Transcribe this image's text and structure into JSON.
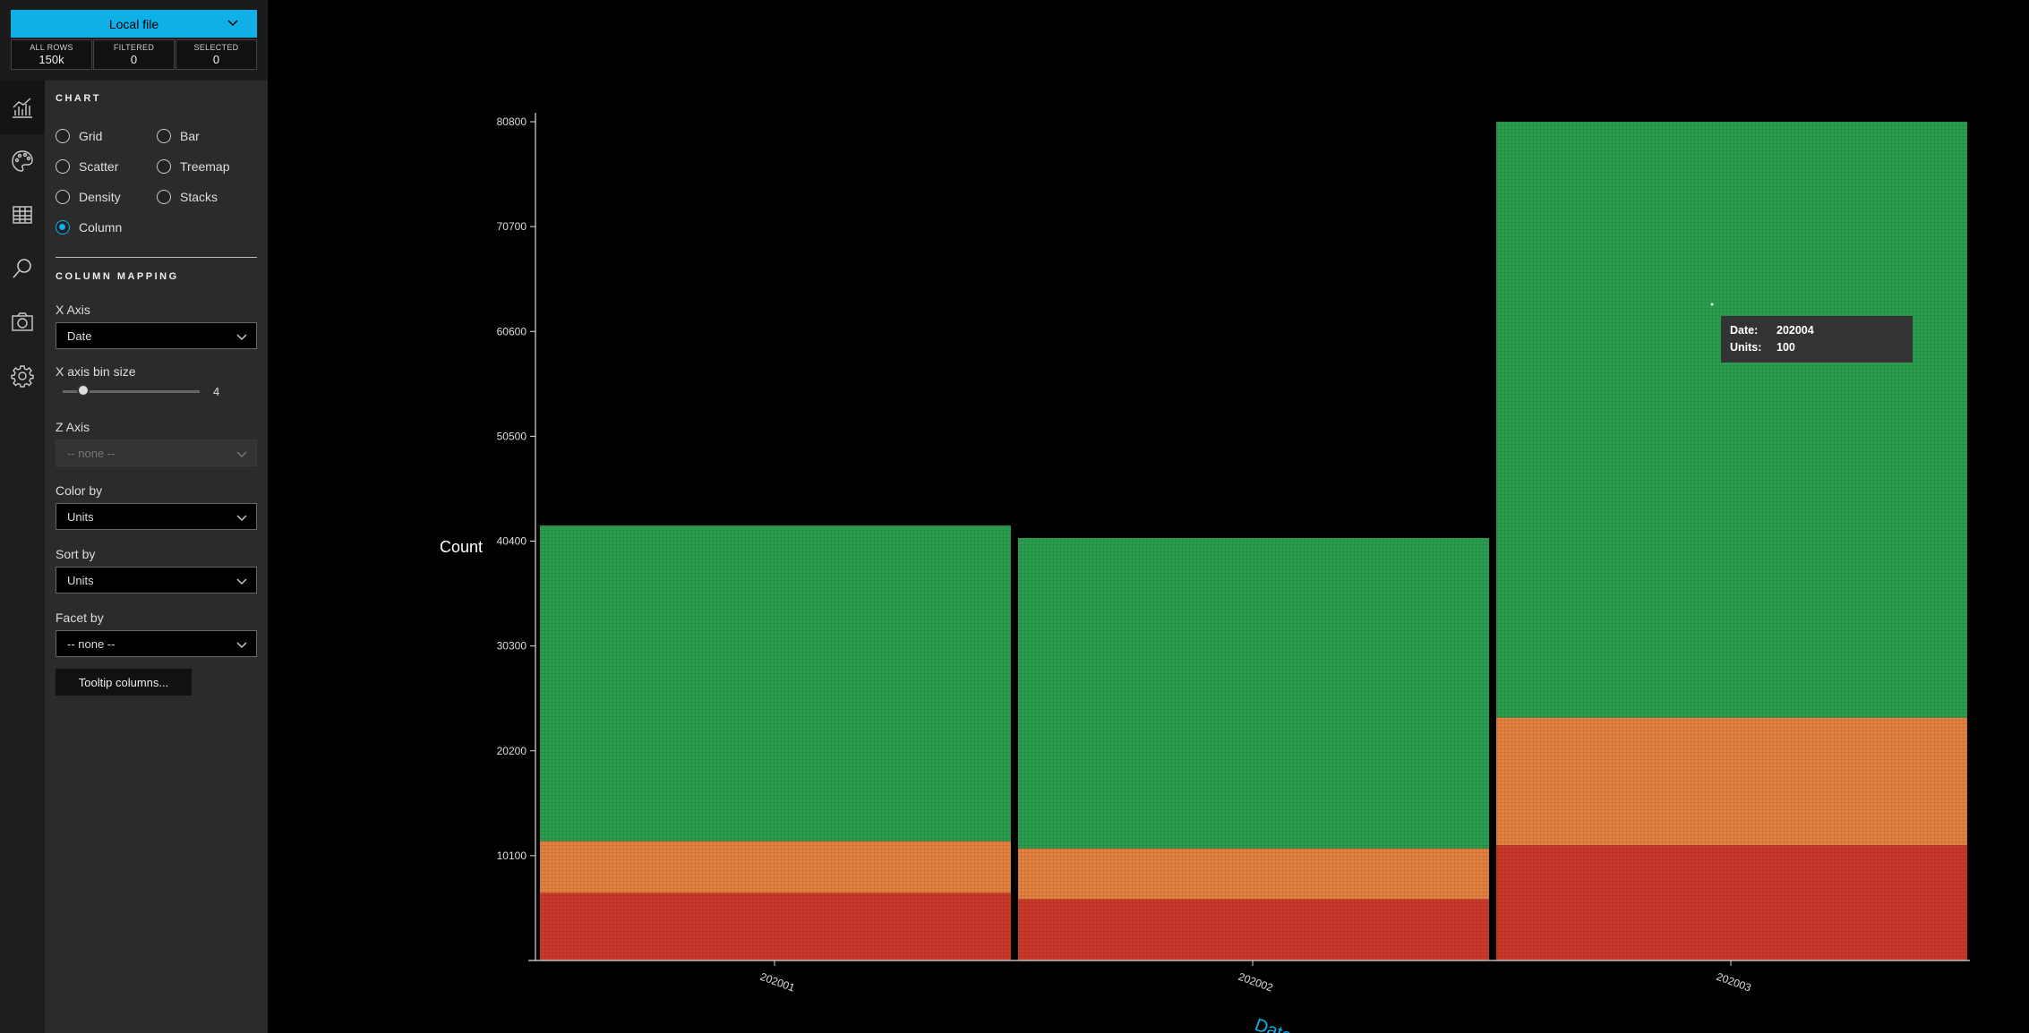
{
  "data_source": {
    "label": "Local file",
    "icon": "chevron-down-icon"
  },
  "stats": [
    {
      "label": "ALL ROWS",
      "value": "150k"
    },
    {
      "label": "FILTERED",
      "value": "0"
    },
    {
      "label": "SELECTED",
      "value": "0"
    }
  ],
  "icon_rail": [
    "line-chart-icon",
    "palette-icon",
    "table-icon",
    "search-icon",
    "camera-icon",
    "gear-icon"
  ],
  "chart_section": {
    "title": "CHART",
    "options": [
      "Grid",
      "Bar",
      "Scatter",
      "Treemap",
      "Density",
      "Stacks",
      "Column"
    ],
    "selected": "Column"
  },
  "mapping": {
    "title": "COLUMN MAPPING",
    "x_axis_label": "X Axis",
    "x_axis_value": "Date",
    "bin_label": "X axis bin size",
    "bin_value": "4",
    "z_axis_label": "Z Axis",
    "z_axis_value": "-- none --",
    "color_label": "Color by",
    "color_value": "Units",
    "sort_label": "Sort by",
    "sort_value": "Units",
    "facet_label": "Facet by",
    "facet_value": "-- none --",
    "tooltip_button": "Tooltip columns..."
  },
  "tooltip": {
    "k1": "Date:",
    "v1": "202004",
    "k2": "Units:",
    "v2": "100"
  },
  "colors": {
    "accent": "#0fb0e8",
    "green": "#2b9d4f",
    "orange": "#e3803f",
    "red": "#c9382a"
  },
  "chart_data": {
    "type": "bar",
    "stacked": true,
    "categories": [
      "202001",
      "202002",
      "202003"
    ],
    "series": [
      {
        "color": "#c9382a",
        "values": [
          6500,
          5900,
          11100
        ]
      },
      {
        "color": "#e3803f",
        "values": [
          5000,
          4900,
          12300
        ]
      },
      {
        "color": "#2b9d4f",
        "values": [
          30400,
          29900,
          57400
        ]
      }
    ],
    "ylabel": "Count",
    "xlabel": "Date",
    "yticks": [
      10100,
      20200,
      30300,
      40400,
      50500,
      60600,
      70700,
      80800
    ],
    "ylim": [
      0,
      80800
    ]
  }
}
